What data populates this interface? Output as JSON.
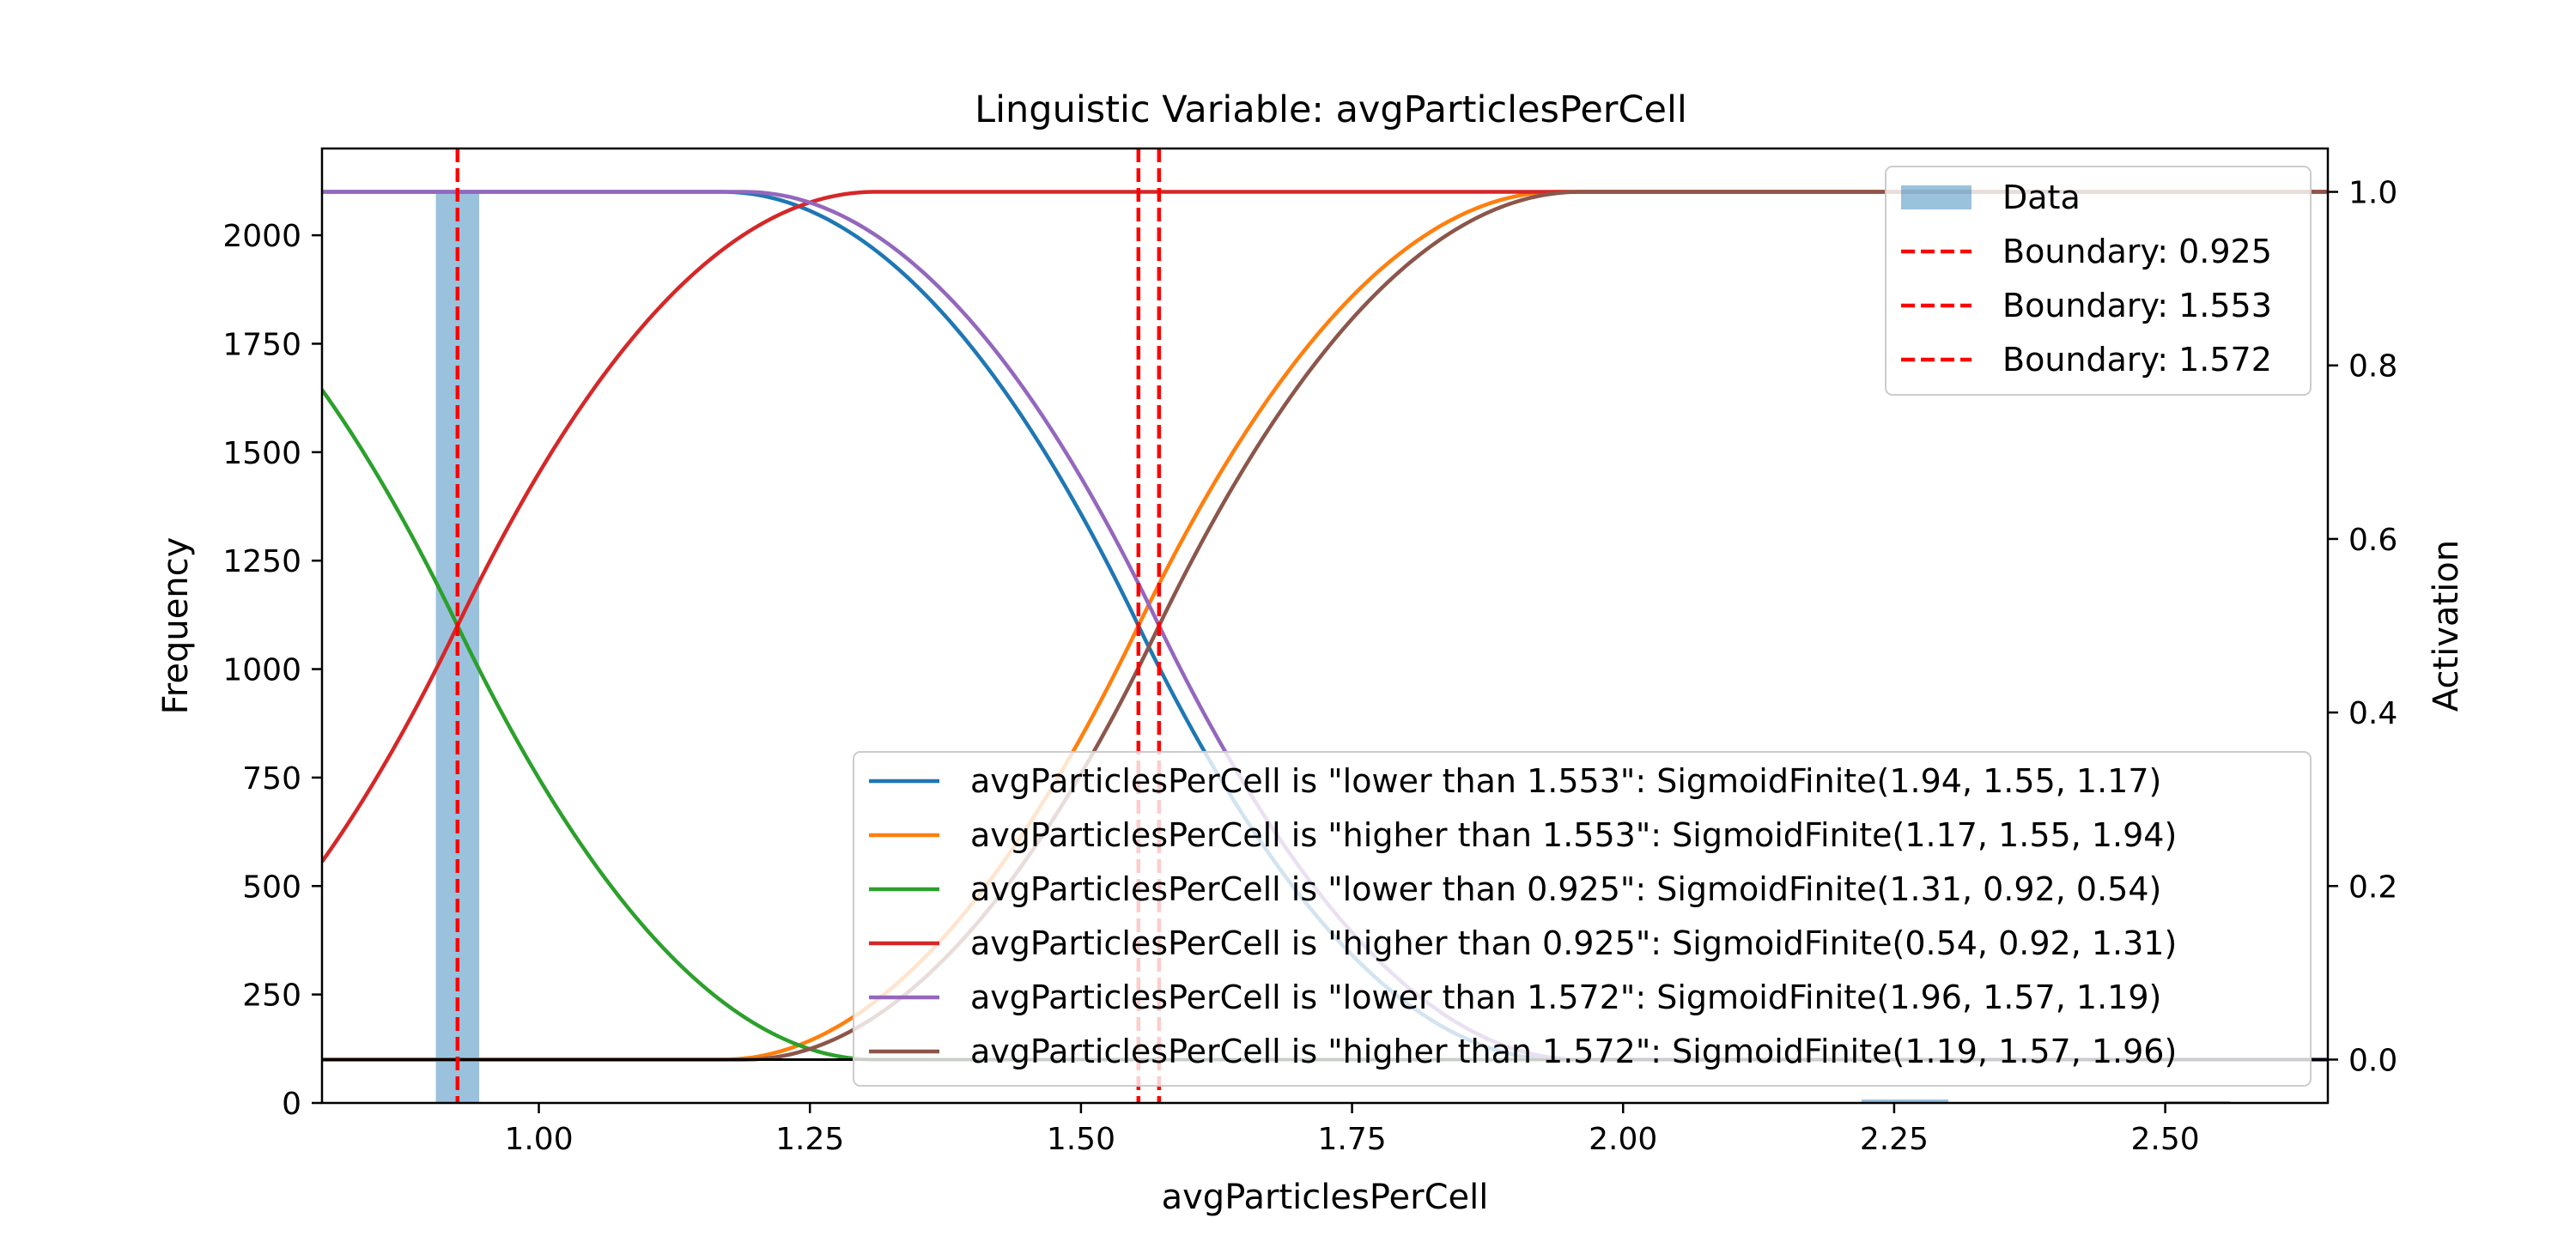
{
  "chart_data": {
    "type": "line",
    "title": "Linguistic Variable: avgParticlesPerCell",
    "xlabel": "avgParticlesPerCell",
    "ylabel": "Frequency",
    "y2label": "Activation",
    "xlim": [
      0.8,
      2.65
    ],
    "ylim": [
      0,
      2200
    ],
    "y2lim": [
      -0.05,
      1.05
    ],
    "xticks": [
      "1.00",
      "1.25",
      "1.50",
      "1.75",
      "2.00",
      "2.25",
      "2.50"
    ],
    "xtick_values": [
      1.0,
      1.25,
      1.5,
      1.75,
      2.0,
      2.25,
      2.5
    ],
    "yticks": [
      "0",
      "250",
      "500",
      "750",
      "1000",
      "1250",
      "1500",
      "1750",
      "2000"
    ],
    "ytick_values": [
      0,
      250,
      500,
      750,
      1000,
      1250,
      1500,
      1750,
      2000
    ],
    "y2ticks": [
      "0.0",
      "0.2",
      "0.4",
      "0.6",
      "0.8",
      "1.0"
    ],
    "y2tick_values": [
      0.0,
      0.2,
      0.4,
      0.6,
      0.8,
      1.0
    ],
    "histogram": {
      "name": "Data",
      "color": "#1f77b4",
      "alpha": 0.45,
      "bins": [
        {
          "x0": 0.905,
          "x1": 0.945,
          "count": 2100
        },
        {
          "x0": 2.22,
          "x1": 2.3,
          "count": 8
        },
        {
          "x0": 2.5,
          "x1": 2.56,
          "count": 4
        }
      ]
    },
    "boundaries": [
      {
        "label": "Boundary: 0.925",
        "x": 0.925
      },
      {
        "label": "Boundary: 1.553",
        "x": 1.553
      },
      {
        "label": "Boundary: 1.572",
        "x": 1.572
      }
    ],
    "boundary_color": "#ff0000",
    "series": [
      {
        "name": "avgParticlesPerCell is \"lower than 1.553\": SigmoidFinite(1.94, 1.55, 1.17)",
        "color": "#1f77b4",
        "params": [
          1.94,
          1.553,
          1.17
        ]
      },
      {
        "name": "avgParticlesPerCell is \"higher than 1.553\": SigmoidFinite(1.17, 1.55, 1.94)",
        "color": "#ff7f0e",
        "params": [
          1.17,
          1.553,
          1.94
        ]
      },
      {
        "name": "avgParticlesPerCell is \"lower than 0.925\": SigmoidFinite(1.31, 0.92, 0.54)",
        "color": "#2ca02c",
        "params": [
          1.31,
          0.925,
          0.54
        ]
      },
      {
        "name": "avgParticlesPerCell is \"higher than 0.925\": SigmoidFinite(0.54, 0.92, 1.31)",
        "color": "#d62728",
        "params": [
          0.54,
          0.925,
          1.31
        ]
      },
      {
        "name": "avgParticlesPerCell is \"lower than 1.572\": SigmoidFinite(1.96, 1.57, 1.19)",
        "color": "#9467bd",
        "params": [
          1.96,
          1.572,
          1.19
        ]
      },
      {
        "name": "avgParticlesPerCell is \"higher than 1.572\": SigmoidFinite(1.19, 1.57, 1.96)",
        "color": "#8c564b",
        "params": [
          1.19,
          1.572,
          1.96
        ]
      }
    ],
    "legend_boundary_placement": "upper-right",
    "legend_series_placement": "lower-right",
    "grid": false
  }
}
